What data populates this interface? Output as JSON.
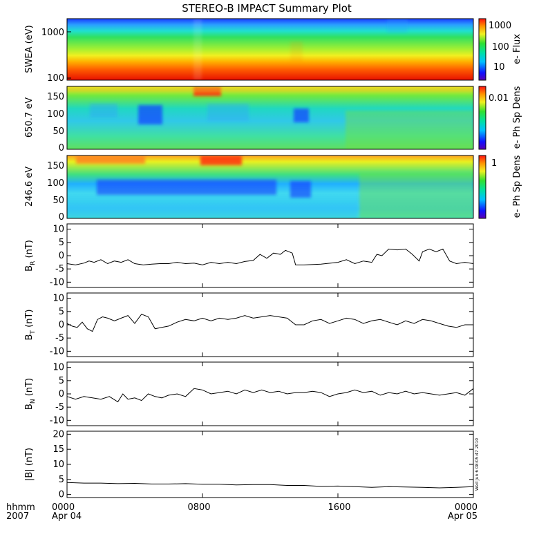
{
  "title": "STEREO-B IMPACT Summary Plot",
  "footer": {
    "xhead_line1": "hhmm",
    "xhead_line2": "2007",
    "ticks": [
      "0000",
      "0800",
      "1600",
      "0000"
    ],
    "dates": [
      "Apr 04",
      "",
      "",
      "Apr 05"
    ],
    "timestamp": "Wed Jun 6 08:05:47 2010"
  },
  "colors": {
    "line": "#000000",
    "frame": "#000000"
  },
  "chart_data": [
    {
      "type": "heatmap",
      "id": "swea",
      "ylabel": "SWEA (eV)",
      "yscale": "log",
      "ylim": [
        100,
        2000
      ],
      "yticks": [
        "1000",
        "100"
      ],
      "colorbar_label": "e- Flux",
      "colorbar_ticks": [
        "1000",
        "100",
        "10"
      ],
      "x_range_hours": [
        0,
        24
      ],
      "note": "energy spectrogram, flux decreasing with energy (red at 100 eV, blue near 2000 eV)"
    },
    {
      "type": "heatmap",
      "id": "pad650",
      "ylabel": "650.7 eV",
      "ylim": [
        0,
        180
      ],
      "yticks": [
        "150",
        "100",
        "50",
        "0"
      ],
      "colorbar_label": "e- Ph Sp Dens",
      "colorbar_ticks": [
        "0.01"
      ],
      "x_range_hours": [
        0,
        24
      ]
    },
    {
      "type": "heatmap",
      "id": "pad246",
      "ylabel": "246.6 eV",
      "ylim": [
        0,
        180
      ],
      "yticks": [
        "150",
        "100",
        "50",
        "0"
      ],
      "colorbar_label": "e- Ph Sp Dens",
      "colorbar_ticks": [
        "1"
      ],
      "x_range_hours": [
        0,
        24
      ]
    },
    {
      "type": "line",
      "id": "br",
      "ylabel": "B",
      "ylabel_sub": "R",
      "ylabel_unit": " (nT)",
      "ylim": [
        -12,
        12
      ],
      "yticks": [
        10,
        5,
        0,
        -5,
        -10
      ],
      "x_hours": [
        0,
        0.5,
        1,
        1.3,
        1.6,
        2,
        2.4,
        2.8,
        3.2,
        3.6,
        4,
        4.5,
        5,
        5.5,
        6,
        6.5,
        7,
        7.5,
        8,
        8.5,
        9,
        9.5,
        10,
        10.5,
        11,
        11.4,
        11.8,
        12.2,
        12.6,
        12.9,
        13.3,
        13.5,
        14,
        15,
        16,
        16.5,
        17,
        17.5,
        18,
        18.3,
        18.6,
        19,
        19.5,
        20,
        20.4,
        20.8,
        21,
        21.4,
        21.8,
        22.2,
        22.6,
        23,
        23.5,
        24
      ],
      "y": [
        -3,
        -3.5,
        -2.8,
        -2,
        -2.5,
        -1.5,
        -3,
        -2,
        -2.5,
        -1.5,
        -3,
        -3.5,
        -3.2,
        -3,
        -3,
        -2.5,
        -3,
        -2.8,
        -3.5,
        -2.5,
        -3,
        -2.5,
        -3,
        -2.2,
        -1.8,
        0.5,
        -1,
        1,
        0.5,
        2,
        1,
        -3.5,
        -3.5,
        -3.2,
        -2.5,
        -1.5,
        -3,
        -2,
        -2.5,
        0.5,
        0,
        2.5,
        2.2,
        2.5,
        0.5,
        -2,
        1.5,
        2.5,
        1.5,
        2.5,
        -2,
        -3,
        -2.5,
        -3
      ]
    },
    {
      "type": "line",
      "id": "bt",
      "ylabel": "B",
      "ylabel_sub": "T",
      "ylabel_unit": " (nT)",
      "ylim": [
        -12,
        12
      ],
      "yticks": [
        10,
        5,
        0,
        -5,
        -10
      ],
      "x_hours": [
        0,
        0.3,
        0.6,
        0.9,
        1.2,
        1.5,
        1.8,
        2.1,
        2.4,
        2.8,
        3.2,
        3.6,
        4,
        4.4,
        4.8,
        5.2,
        5.6,
        6,
        6.5,
        7,
        7.5,
        8,
        8.5,
        9,
        9.5,
        10,
        10.5,
        11,
        11.5,
        12,
        12.5,
        13,
        13.5,
        14,
        14.5,
        15,
        15.5,
        16,
        16.5,
        17,
        17.5,
        18,
        18.5,
        19,
        19.5,
        20,
        20.5,
        21,
        21.5,
        22,
        22.5,
        23,
        23.5,
        24
      ],
      "y": [
        0.5,
        -0.5,
        -1,
        1,
        -1.5,
        -2.5,
        2,
        3,
        2.5,
        1.5,
        2.5,
        3.5,
        0.5,
        4,
        3,
        -1.5,
        -1,
        -0.5,
        1,
        2,
        1.5,
        2.5,
        1.5,
        2.5,
        2,
        2.5,
        3.5,
        2.5,
        3,
        3.5,
        3,
        2.5,
        0,
        0,
        1.5,
        2,
        0.5,
        1.5,
        2.5,
        2,
        0.5,
        1.5,
        2,
        1,
        0,
        1.5,
        0.5,
        2,
        1.5,
        0.5,
        -0.5,
        -1,
        0,
        0
      ]
    },
    {
      "type": "line",
      "id": "bn",
      "ylabel": "B",
      "ylabel_sub": "N",
      "ylabel_unit": " (nT)",
      "ylim": [
        -12,
        12
      ],
      "yticks": [
        10,
        5,
        0,
        -5,
        -10
      ],
      "x_hours": [
        0,
        0.5,
        1,
        1.5,
        2,
        2.5,
        3,
        3.3,
        3.6,
        4,
        4.4,
        4.8,
        5.2,
        5.6,
        6,
        6.5,
        7,
        7.5,
        8,
        8.5,
        9,
        9.5,
        10,
        10.5,
        11,
        11.5,
        12,
        12.5,
        13,
        13.5,
        14,
        14.5,
        15,
        15.5,
        16,
        16.5,
        17,
        17.5,
        18,
        18.5,
        19,
        19.5,
        20,
        20.5,
        21,
        21.5,
        22,
        22.5,
        23,
        23.5,
        24
      ],
      "y": [
        -1,
        -2,
        -1,
        -1.5,
        -2,
        -1,
        -3,
        0,
        -2,
        -1.5,
        -2.5,
        0,
        -1,
        -1.5,
        -0.5,
        0,
        -1,
        2,
        1.5,
        0,
        0.5,
        1,
        0,
        1.5,
        0.5,
        1.5,
        0.5,
        1,
        0,
        0.5,
        0.5,
        1,
        0.5,
        -1,
        0,
        0.5,
        1.5,
        0.5,
        1,
        -0.5,
        0.5,
        0,
        1,
        0,
        0.5,
        0,
        -0.5,
        0,
        0.5,
        -0.5,
        2
      ]
    },
    {
      "type": "line",
      "id": "bmag",
      "ylabel": "|B| (nT)",
      "ylim": [
        -1,
        21
      ],
      "yticks": [
        20,
        15,
        10,
        5,
        0
      ],
      "x_hours": [
        0,
        1,
        2,
        3,
        4,
        5,
        6,
        7,
        8,
        9,
        10,
        11,
        12,
        13,
        14,
        15,
        16,
        17,
        18,
        19,
        20,
        21,
        22,
        23,
        24
      ],
      "y": [
        4,
        3.8,
        3.8,
        3.6,
        3.7,
        3.5,
        3.5,
        3.6,
        3.4,
        3.4,
        3.2,
        3.3,
        3.3,
        3,
        3,
        2.7,
        2.8,
        2.6,
        2.4,
        2.6,
        2.5,
        2.4,
        2.2,
        2.4,
        2.6
      ]
    }
  ]
}
